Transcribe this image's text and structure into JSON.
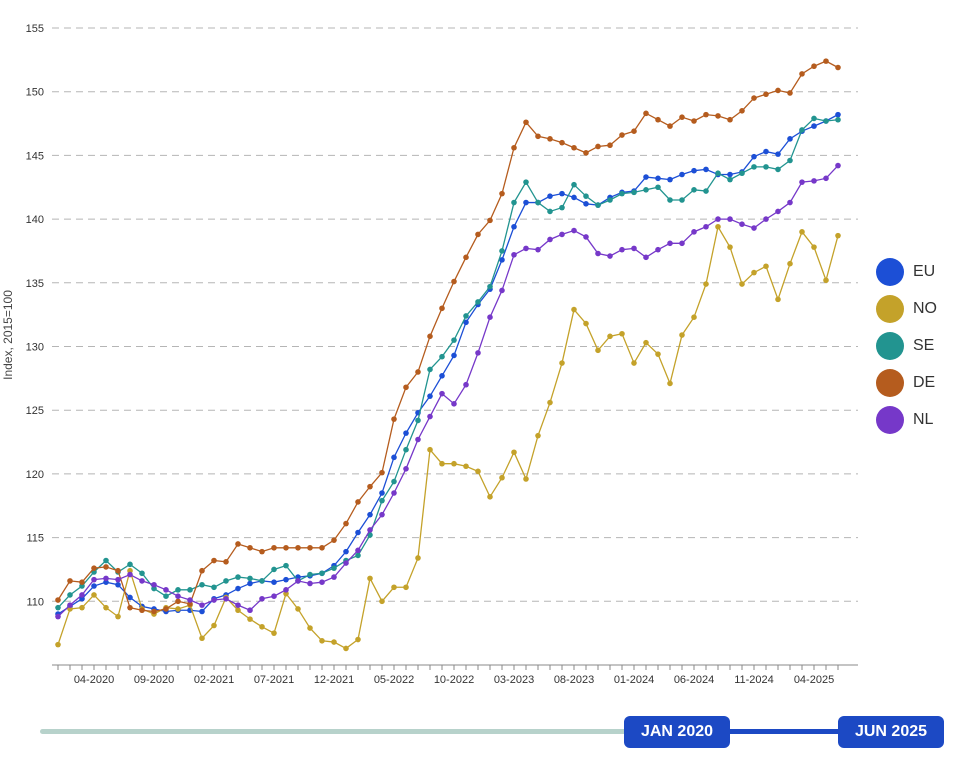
{
  "chart_data": {
    "type": "line",
    "ylabel": "Index, 2015=100",
    "ylim": [
      105,
      155
    ],
    "yticks": [
      110,
      115,
      120,
      125,
      130,
      135,
      140,
      145,
      150,
      155
    ],
    "grid": "horizontal dashed",
    "legend_position": "right",
    "x": [
      "01-2020",
      "02-2020",
      "03-2020",
      "04-2020",
      "05-2020",
      "06-2020",
      "07-2020",
      "08-2020",
      "09-2020",
      "10-2020",
      "11-2020",
      "12-2020",
      "01-2021",
      "02-2021",
      "03-2021",
      "04-2021",
      "05-2021",
      "06-2021",
      "07-2021",
      "08-2021",
      "09-2021",
      "10-2021",
      "11-2021",
      "12-2021",
      "01-2022",
      "02-2022",
      "03-2022",
      "04-2022",
      "05-2022",
      "06-2022",
      "07-2022",
      "08-2022",
      "09-2022",
      "10-2022",
      "11-2022",
      "12-2022",
      "01-2023",
      "02-2023",
      "03-2023",
      "04-2023",
      "05-2023",
      "06-2023",
      "07-2023",
      "08-2023",
      "09-2023",
      "10-2023",
      "11-2023",
      "12-2023",
      "01-2024",
      "02-2024",
      "03-2024",
      "04-2024",
      "05-2024",
      "06-2024",
      "07-2024",
      "08-2024",
      "09-2024",
      "10-2024",
      "11-2024",
      "12-2024",
      "01-2025",
      "02-2025",
      "03-2025",
      "04-2025",
      "05-2025",
      "06-2025"
    ],
    "xtick_labels": [
      "04-2020",
      "09-2020",
      "02-2021",
      "07-2021",
      "12-2021",
      "05-2022",
      "10-2022",
      "03-2023",
      "08-2023",
      "01-2024",
      "06-2024",
      "11-2024",
      "04-2025"
    ],
    "series": [
      {
        "name": "EU",
        "color": "#1c4fd6",
        "values": [
          109.0,
          109.6,
          110.2,
          111.2,
          111.5,
          111.3,
          110.3,
          109.6,
          109.4,
          109.2,
          109.3,
          109.3,
          109.2,
          110.2,
          110.5,
          111.0,
          111.4,
          111.6,
          111.5,
          111.7,
          111.9,
          112.0,
          112.2,
          112.8,
          113.9,
          115.4,
          116.8,
          118.5,
          121.3,
          123.2,
          124.8,
          126.1,
          127.7,
          129.3,
          131.9,
          133.3,
          134.5,
          136.8,
          139.4,
          141.3,
          141.3,
          141.8,
          142.0,
          141.7,
          141.2,
          141.1,
          141.7,
          142.1,
          142.2,
          143.3,
          143.2,
          143.1,
          143.5,
          143.8,
          143.9,
          143.5,
          143.5,
          143.7,
          144.9,
          145.3,
          145.1,
          146.3,
          146.9,
          147.3,
          147.7,
          148.2
        ]
      },
      {
        "name": "NO",
        "color": "#c4a22a",
        "values": [
          106.6,
          109.4,
          109.5,
          110.5,
          109.5,
          108.8,
          112.4,
          109.4,
          109.0,
          109.5,
          109.4,
          109.7,
          107.1,
          108.1,
          110.3,
          109.3,
          108.6,
          108.0,
          107.5,
          110.6,
          109.4,
          107.9,
          106.9,
          106.8,
          106.3,
          107.0,
          111.8,
          110.0,
          111.1,
          111.1,
          113.4,
          121.9,
          120.8,
          120.8,
          120.6,
          120.2,
          118.2,
          119.7,
          121.7,
          119.6,
          123.0,
          125.6,
          128.7,
          132.9,
          131.8,
          129.7,
          130.8,
          131.0,
          128.7,
          130.3,
          129.4,
          127.1,
          130.9,
          132.3,
          134.9,
          139.4,
          137.8,
          134.9,
          135.8,
          136.3,
          133.7,
          136.5,
          139.0,
          137.8,
          135.2,
          138.7
        ]
      },
      {
        "name": "SE",
        "color": "#229490",
        "values": [
          109.5,
          110.5,
          111.2,
          112.3,
          113.2,
          112.3,
          112.9,
          112.2,
          111.0,
          110.4,
          110.9,
          110.9,
          111.3,
          111.1,
          111.6,
          111.9,
          111.8,
          111.6,
          112.5,
          112.8,
          111.6,
          112.1,
          112.2,
          112.6,
          113.2,
          113.6,
          115.2,
          117.9,
          119.4,
          121.9,
          124.2,
          128.2,
          129.2,
          130.5,
          132.4,
          133.5,
          134.7,
          137.5,
          141.3,
          142.9,
          141.3,
          140.6,
          140.9,
          142.7,
          141.8,
          141.1,
          141.5,
          142.0,
          142.1,
          142.3,
          142.5,
          141.5,
          141.5,
          142.3,
          142.2,
          143.6,
          143.1,
          143.6,
          144.1,
          144.1,
          143.9,
          144.6,
          147.0,
          147.9,
          147.7,
          147.8
        ]
      },
      {
        "name": "DE",
        "color": "#b55c1e",
        "values": [
          110.1,
          111.6,
          111.5,
          112.6,
          112.7,
          112.4,
          109.5,
          109.3,
          109.2,
          109.4,
          110.0,
          109.8,
          112.4,
          113.2,
          113.1,
          114.5,
          114.2,
          113.9,
          114.2,
          114.2,
          114.2,
          114.2,
          114.2,
          114.8,
          116.1,
          117.8,
          119.0,
          120.1,
          124.3,
          126.8,
          128.0,
          130.8,
          133.0,
          135.1,
          137.0,
          138.8,
          139.9,
          142.0,
          145.6,
          147.6,
          146.5,
          146.3,
          146.0,
          145.6,
          145.2,
          145.7,
          145.8,
          146.6,
          146.9,
          148.3,
          147.8,
          147.3,
          148.0,
          147.7,
          148.2,
          148.1,
          147.8,
          148.5,
          149.5,
          149.8,
          150.1,
          149.9,
          151.4,
          152.0,
          152.4,
          151.9
        ]
      },
      {
        "name": "NL",
        "color": "#7638c9",
        "values": [
          108.8,
          109.7,
          110.5,
          111.7,
          111.8,
          111.7,
          112.1,
          111.6,
          111.3,
          110.9,
          110.4,
          110.1,
          109.7,
          110.1,
          110.2,
          109.7,
          109.3,
          110.2,
          110.4,
          110.9,
          111.6,
          111.4,
          111.5,
          111.9,
          113.0,
          114.0,
          115.6,
          116.8,
          118.5,
          120.4,
          122.7,
          124.5,
          126.3,
          125.5,
          127.0,
          129.5,
          132.3,
          134.4,
          137.2,
          137.7,
          137.6,
          138.4,
          138.8,
          139.1,
          138.6,
          137.3,
          137.1,
          137.6,
          137.7,
          137.0,
          137.6,
          138.1,
          138.1,
          139.0,
          139.4,
          140.0,
          140.0,
          139.6,
          139.3,
          140.0,
          140.6,
          141.3,
          142.9,
          143.0,
          143.2,
          144.2
        ]
      }
    ]
  },
  "slider": {
    "start_label": "JAN 2020",
    "end_label": "JUN 2025"
  }
}
